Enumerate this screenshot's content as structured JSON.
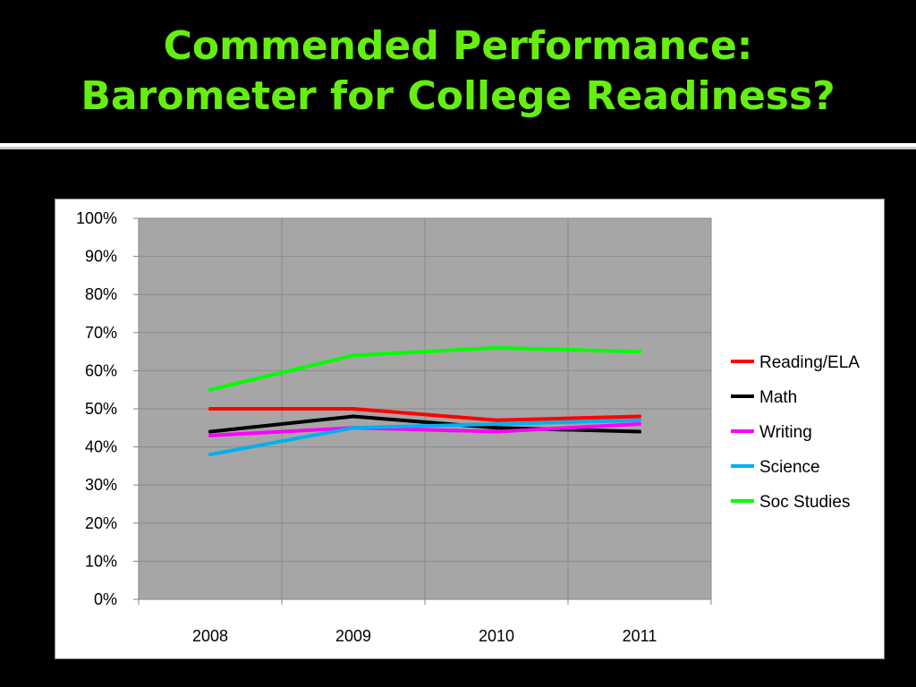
{
  "slide": {
    "title_line1": "Commended Performance:",
    "title_line2": "Barometer for College Readiness?",
    "title_color": "#66ee11",
    "background_color": "#000000"
  },
  "chart_data": {
    "type": "line",
    "categories": [
      "2008",
      "2009",
      "2010",
      "2011"
    ],
    "series": [
      {
        "name": "Reading/ELA",
        "color": "#ff0000",
        "values": [
          50,
          50,
          47,
          48
        ]
      },
      {
        "name": "Math",
        "color": "#000000",
        "values": [
          44,
          48,
          45,
          44
        ]
      },
      {
        "name": "Writing",
        "color": "#ff00ff",
        "values": [
          43,
          45,
          44,
          46
        ]
      },
      {
        "name": "Science",
        "color": "#00b0f0",
        "values": [
          38,
          45,
          46,
          47
        ]
      },
      {
        "name": "Soc Studies",
        "color": "#00ff00",
        "values": [
          55,
          64,
          66,
          65
        ]
      }
    ],
    "ylim": [
      0,
      100
    ],
    "y_ticks": [
      0,
      10,
      20,
      30,
      40,
      50,
      60,
      70,
      80,
      90,
      100
    ],
    "y_tick_suffix": "%",
    "title": "",
    "xlabel": "",
    "ylabel": "",
    "grid": true,
    "plot_background": "#a6a6a6",
    "legend_position": "right"
  }
}
